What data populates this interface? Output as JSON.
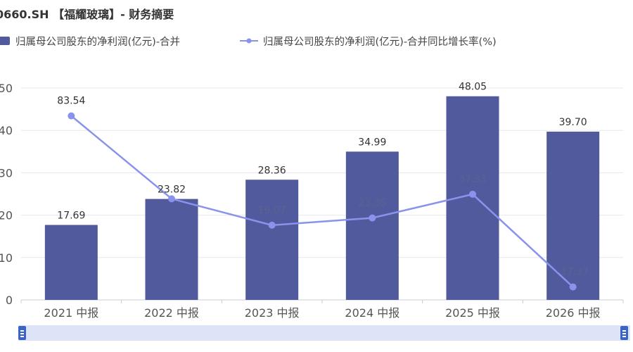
{
  "title": "0660.SH 【福耀玻璃】- 财务摘要",
  "colors": {
    "bar": "#515a9c",
    "line": "#8a93ec",
    "grid": "#e6e8ee",
    "axis_text": "#555555"
  },
  "chart_data": {
    "type": "bar",
    "categories": [
      "2021 中报",
      "2022 中报",
      "2023 中报",
      "2024 中报",
      "2025 中报",
      "2026 中报"
    ],
    "series": [
      {
        "name": "归属母公司股东的净利润(亿元)-合并",
        "type": "bar",
        "axis": "left",
        "values": [
          17.69,
          23.82,
          28.36,
          34.99,
          48.05,
          39.7
        ],
        "labels": [
          "17.69",
          "23.82",
          "28.36",
          "34.99",
          "48.05",
          "39.70"
        ]
      },
      {
        "name": "归属母公司股东的净利润(亿元)-合并同比增长率(%)",
        "type": "line",
        "axis": "right",
        "values": [
          83.54,
          34.65,
          19.07,
          23.35,
          37.33,
          -17.37
        ],
        "labels": [
          "83.54",
          "",
          "19.07",
          "23.35",
          "37.33",
          "-17.37"
        ]
      }
    ],
    "y_left": {
      "ticks": [
        "50",
        "40",
        "30",
        "20",
        "10",
        "0"
      ],
      "ylim": [
        0,
        50
      ]
    },
    "y_right": {
      "ylim": [
        -25,
        100
      ]
    },
    "grid": true,
    "legend_position": "top-left"
  }
}
